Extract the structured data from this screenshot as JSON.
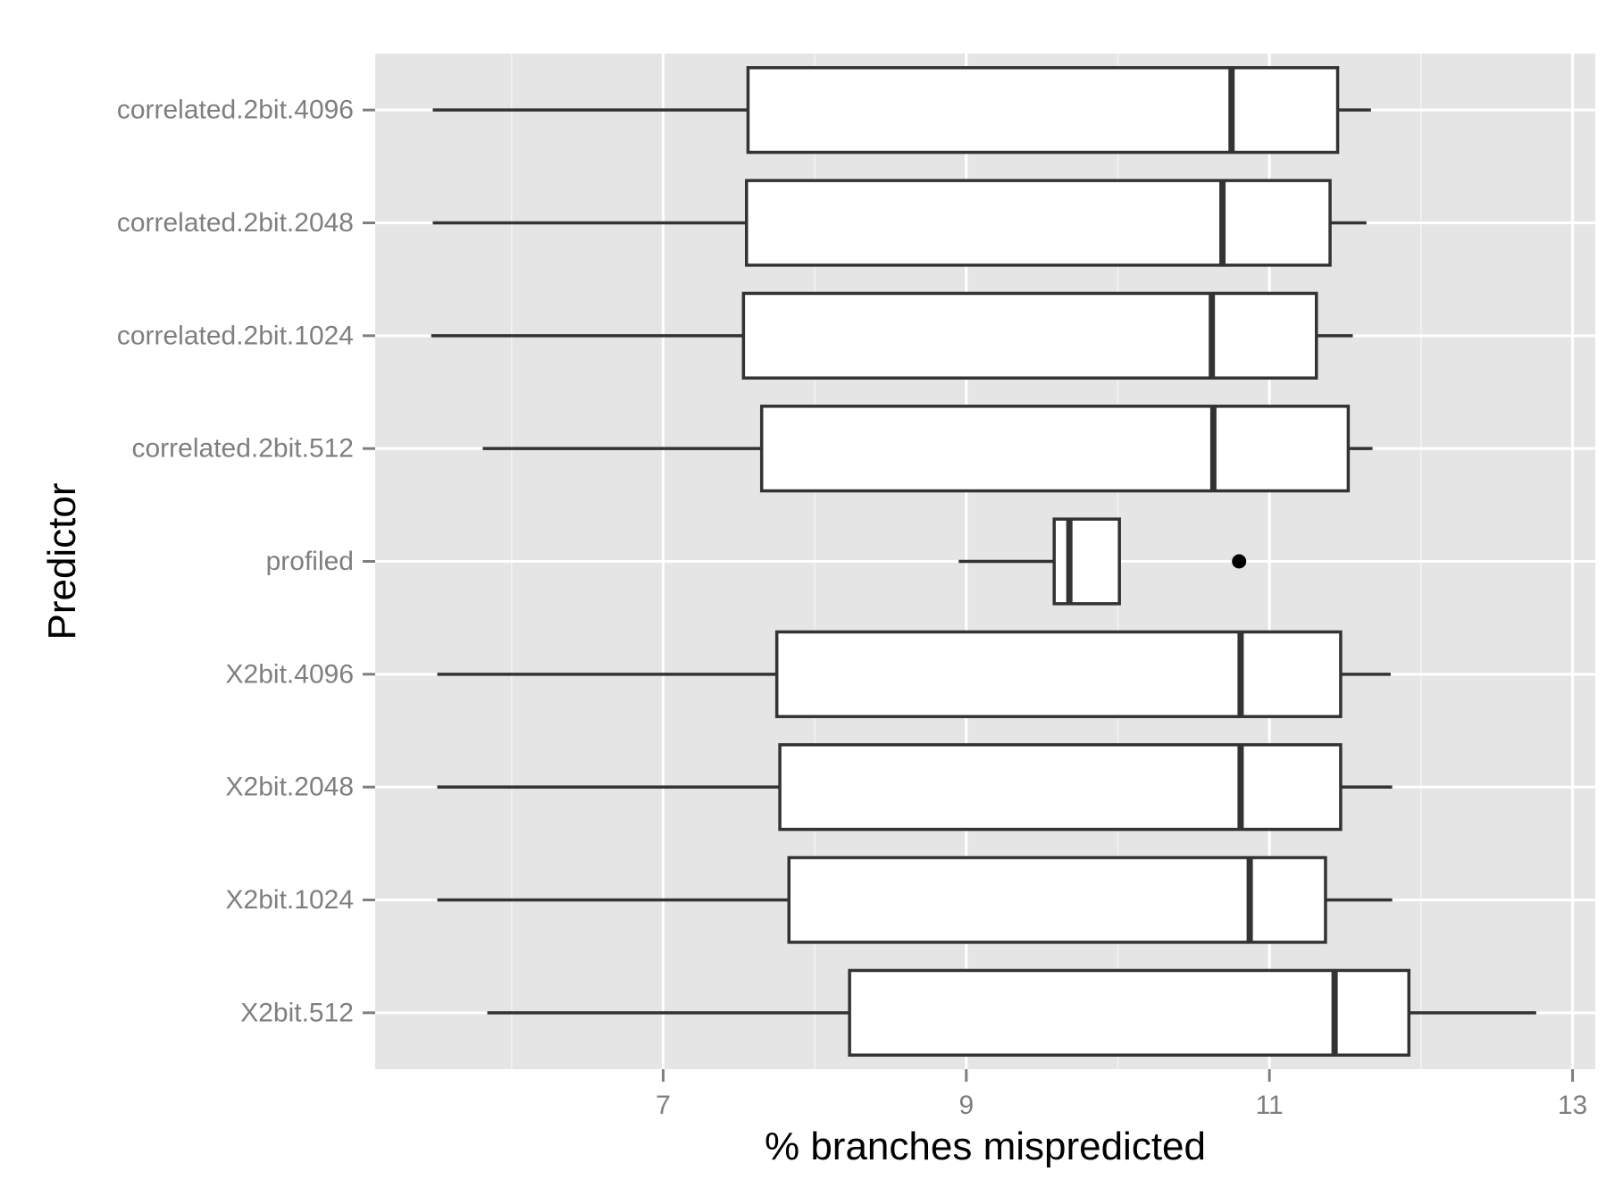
{
  "chart_data": {
    "type": "boxplot",
    "orientation": "horizontal",
    "xlabel": "% branches mispredicted",
    "ylabel": "Predictor",
    "xlim": [
      5.1,
      13.15
    ],
    "x_ticks": [
      7,
      9,
      11,
      13
    ],
    "x_minor_ticks": [
      6,
      8,
      10,
      12
    ],
    "grid": true,
    "legend": "none",
    "colors": {
      "panel": "#e5e5e5",
      "grid": "#ffffff",
      "box_fill": "#ffffff",
      "box_stroke": "#333333",
      "tick_text": "#7f7f7f",
      "title_text": "#000000"
    },
    "categories": [
      "correlated.2bit.4096",
      "correlated.2bit.2048",
      "correlated.2bit.1024",
      "correlated.2bit.512",
      "profiled",
      "X2bit.4096",
      "X2bit.2048",
      "X2bit.1024",
      "X2bit.512"
    ],
    "boxes": [
      {
        "min": 5.48,
        "q1": 7.56,
        "median": 10.75,
        "q3": 11.45,
        "max": 11.67,
        "outliers": []
      },
      {
        "min": 5.48,
        "q1": 7.55,
        "median": 10.69,
        "q3": 11.4,
        "max": 11.64,
        "outliers": []
      },
      {
        "min": 5.47,
        "q1": 7.53,
        "median": 10.62,
        "q3": 11.31,
        "max": 11.55,
        "outliers": []
      },
      {
        "min": 5.81,
        "q1": 7.65,
        "median": 10.63,
        "q3": 11.52,
        "max": 11.68,
        "outliers": []
      },
      {
        "min": 8.95,
        "q1": 9.58,
        "median": 9.68,
        "q3": 10.01,
        "max": 10.01,
        "outliers": [
          10.8
        ]
      },
      {
        "min": 5.51,
        "q1": 7.75,
        "median": 10.81,
        "q3": 11.47,
        "max": 11.8,
        "outliers": []
      },
      {
        "min": 5.51,
        "q1": 7.77,
        "median": 10.81,
        "q3": 11.47,
        "max": 11.81,
        "outliers": []
      },
      {
        "min": 5.51,
        "q1": 7.83,
        "median": 10.87,
        "q3": 11.37,
        "max": 11.81,
        "outliers": []
      },
      {
        "min": 5.84,
        "q1": 8.23,
        "median": 11.43,
        "q3": 11.92,
        "max": 12.76,
        "outliers": []
      }
    ]
  }
}
